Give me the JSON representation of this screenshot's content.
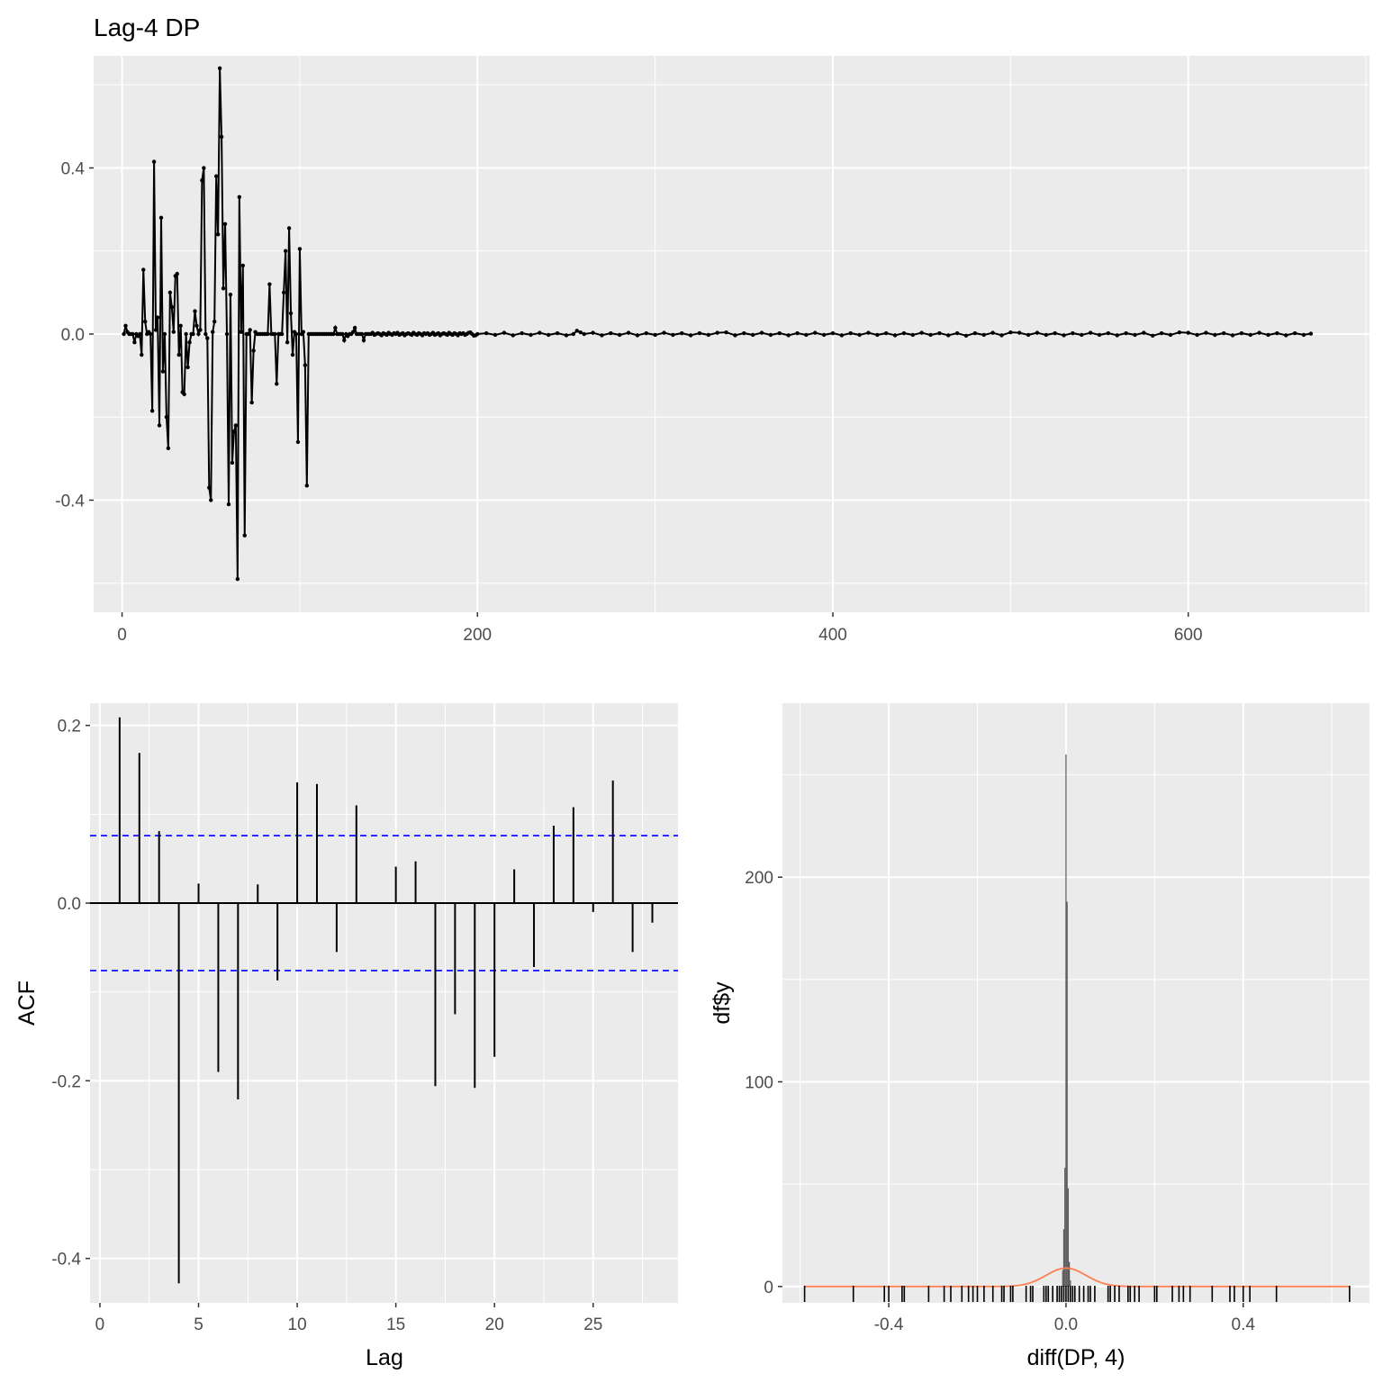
{
  "colors": {
    "panel": "#ebebeb",
    "grid": "#ffffff",
    "line": "#000000",
    "ci": "#0000ff",
    "hist": "#595959",
    "normal_curve": "#ff7f50",
    "tick_text": "#4d4d4d"
  },
  "chart_data": [
    {
      "type": "line",
      "title": "Lag-4 DP",
      "xlabel": "",
      "ylabel": "",
      "xlim": [
        -16,
        702
      ],
      "ylim": [
        -0.67,
        0.67
      ],
      "x_ticks": [
        0,
        200,
        400,
        600
      ],
      "y_ticks": [
        -0.4,
        0.0,
        0.4
      ],
      "y_tick_labels": [
        "-0.4",
        "0.0",
        "0.4"
      ],
      "points": [
        [
          1,
          0
        ],
        [
          2,
          0.02
        ],
        [
          3,
          0.005
        ],
        [
          4,
          0
        ],
        [
          5,
          0
        ],
        [
          6,
          0
        ],
        [
          7,
          -0.02
        ],
        [
          8,
          0
        ],
        [
          9,
          -0.005
        ],
        [
          10,
          0
        ],
        [
          11,
          -0.05
        ],
        [
          12,
          0.155
        ],
        [
          13,
          0.03
        ],
        [
          14,
          0
        ],
        [
          15,
          0.005
        ],
        [
          16,
          0.0
        ],
        [
          17,
          -0.185
        ],
        [
          18,
          0.415
        ],
        [
          19,
          0.01
        ],
        [
          20,
          0.04
        ],
        [
          21,
          -0.22
        ],
        [
          22,
          0.28
        ],
        [
          23,
          -0.09
        ],
        [
          24,
          0.0
        ],
        [
          25,
          -0.2
        ],
        [
          26,
          -0.275
        ],
        [
          27,
          0.1
        ],
        [
          28,
          0.065
        ],
        [
          29,
          0.005
        ],
        [
          30,
          0.14
        ],
        [
          31,
          0.145
        ],
        [
          32,
          -0.05
        ],
        [
          33,
          0.02
        ],
        [
          34,
          -0.14
        ],
        [
          35,
          -0.145
        ],
        [
          36,
          0.0
        ],
        [
          37,
          -0.08
        ],
        [
          38,
          -0.02
        ],
        [
          39,
          0.0
        ],
        [
          40,
          0.0
        ],
        [
          41,
          0.055
        ],
        [
          42,
          0.02
        ],
        [
          43,
          0.0
        ],
        [
          44,
          0.01
        ],
        [
          45,
          0.37
        ],
        [
          46,
          0.4
        ],
        [
          47,
          0.0
        ],
        [
          48,
          -0.01
        ],
        [
          49,
          -0.37
        ],
        [
          50,
          -0.4
        ],
        [
          51,
          0.005
        ],
        [
          52,
          0.03
        ],
        [
          53,
          0.38
        ],
        [
          54,
          0.24
        ],
        [
          55,
          0.64
        ],
        [
          56,
          0.475
        ],
        [
          57,
          0.11
        ],
        [
          58,
          0.265
        ],
        [
          59,
          0.0
        ],
        [
          60,
          -0.41
        ],
        [
          61,
          0.095
        ],
        [
          62,
          -0.31
        ],
        [
          63,
          -0.235
        ],
        [
          64,
          -0.22
        ],
        [
          65,
          -0.59
        ],
        [
          66,
          0.33
        ],
        [
          67,
          0.005
        ],
        [
          68,
          0.165
        ],
        [
          69,
          -0.485
        ],
        [
          70,
          0.0
        ],
        [
          71,
          0.0
        ],
        [
          72,
          0.01
        ],
        [
          73,
          -0.165
        ],
        [
          74,
          -0.04
        ],
        [
          75,
          0.005
        ],
        [
          76,
          0.0
        ],
        [
          77,
          0.0
        ],
        [
          78,
          0.0
        ],
        [
          79,
          0.0
        ],
        [
          80,
          0.0
        ],
        [
          81,
          0.0
        ],
        [
          82,
          0.0
        ],
        [
          83,
          0.12
        ],
        [
          84,
          0.0
        ],
        [
          85,
          0.0
        ],
        [
          86,
          0.0
        ],
        [
          87,
          -0.12
        ],
        [
          88,
          0.0
        ],
        [
          89,
          0.0
        ],
        [
          90,
          0.0
        ],
        [
          91,
          0.1
        ],
        [
          92,
          0.2
        ],
        [
          93,
          -0.02
        ],
        [
          94,
          0.255
        ],
        [
          95,
          0.05
        ],
        [
          96,
          -0.05
        ],
        [
          97,
          0.005
        ],
        [
          98,
          0.0
        ],
        [
          99,
          -0.26
        ],
        [
          100,
          0.205
        ],
        [
          101,
          0.0
        ],
        [
          102,
          0.005
        ],
        [
          103,
          -0.075
        ],
        [
          104,
          -0.365
        ],
        [
          105,
          0.0
        ],
        [
          106,
          0.0
        ],
        [
          107,
          0.0
        ],
        [
          108,
          0.0
        ],
        [
          109,
          0.0
        ],
        [
          110,
          0.0
        ],
        [
          111,
          0.0
        ],
        [
          112,
          0.0
        ],
        [
          113,
          0.0
        ],
        [
          114,
          0.0
        ],
        [
          115,
          0.0
        ],
        [
          116,
          0.0
        ],
        [
          117,
          0.0
        ],
        [
          118,
          0.0
        ],
        [
          119,
          0.0
        ],
        [
          120,
          0.015
        ],
        [
          121,
          0.0
        ],
        [
          122,
          0.0
        ],
        [
          123,
          0.0
        ],
        [
          124,
          0.0
        ],
        [
          125,
          -0.015
        ],
        [
          126,
          0.0
        ],
        [
          127,
          -0.005
        ],
        [
          128,
          0.0
        ],
        [
          129,
          0.0
        ],
        [
          130,
          0.005
        ],
        [
          131,
          0.015
        ],
        [
          132,
          0.0
        ],
        [
          133,
          0.0
        ],
        [
          134,
          0.0
        ],
        [
          135,
          0.0
        ],
        [
          136,
          -0.015
        ],
        [
          137,
          0.0
        ],
        [
          138,
          0.0
        ],
        [
          139,
          0.0
        ],
        [
          140,
          0.0
        ],
        [
          141,
          0.003
        ],
        [
          142,
          -0.002
        ],
        [
          143,
          0.0
        ],
        [
          144,
          0.002
        ],
        [
          145,
          0.0
        ],
        [
          146,
          -0.003
        ],
        [
          147,
          0.002
        ],
        [
          148,
          0.0
        ],
        [
          149,
          -0.002
        ],
        [
          150,
          0.003
        ],
        [
          151,
          0.0
        ],
        [
          152,
          -0.002
        ],
        [
          153,
          0.002
        ],
        [
          154,
          0.0
        ],
        [
          155,
          0.003
        ],
        [
          156,
          -0.002
        ],
        [
          157,
          0.0
        ],
        [
          158,
          0.002
        ],
        [
          159,
          -0.003
        ],
        [
          160,
          0.0
        ],
        [
          161,
          0.002
        ],
        [
          162,
          0.0
        ],
        [
          163,
          -0.002
        ],
        [
          164,
          0.003
        ],
        [
          165,
          0.0
        ],
        [
          166,
          -0.002
        ],
        [
          167,
          0.002
        ],
        [
          168,
          0.0
        ],
        [
          169,
          -0.003
        ],
        [
          170,
          0.002
        ],
        [
          171,
          0.0
        ],
        [
          172,
          0.002
        ],
        [
          173,
          -0.002
        ],
        [
          174,
          0.0
        ],
        [
          175,
          0.003
        ],
        [
          176,
          -0.002
        ],
        [
          177,
          0.0
        ],
        [
          178,
          0.002
        ],
        [
          179,
          -0.003
        ],
        [
          180,
          0.0
        ],
        [
          181,
          0.002
        ],
        [
          182,
          0.0
        ],
        [
          183,
          -0.002
        ],
        [
          184,
          0.003
        ],
        [
          185,
          0.0
        ],
        [
          186,
          -0.002
        ],
        [
          187,
          0.002
        ],
        [
          188,
          0.0
        ],
        [
          189,
          -0.003
        ],
        [
          190,
          0.002
        ],
        [
          191,
          0.0
        ],
        [
          192,
          0.002
        ],
        [
          193,
          -0.002
        ],
        [
          194,
          0.0
        ],
        [
          195,
          0.003
        ],
        [
          196,
          0.004
        ],
        [
          197,
          0.0
        ],
        [
          198,
          -0.004
        ],
        [
          199,
          -0.003
        ],
        [
          200,
          0.0
        ],
        [
          205,
          0.002
        ],
        [
          210,
          -0.002
        ],
        [
          215,
          0.003
        ],
        [
          220,
          -0.003
        ],
        [
          225,
          0.002
        ],
        [
          230,
          -0.002
        ],
        [
          235,
          0.003
        ],
        [
          240,
          -0.002
        ],
        [
          245,
          0.002
        ],
        [
          250,
          -0.003
        ],
        [
          254,
          0.0
        ],
        [
          256,
          0.008
        ],
        [
          258,
          0.004
        ],
        [
          260,
          0.0
        ],
        [
          265,
          0.003
        ],
        [
          270,
          -0.003
        ],
        [
          275,
          0.002
        ],
        [
          280,
          -0.002
        ],
        [
          285,
          0.003
        ],
        [
          290,
          -0.003
        ],
        [
          295,
          0.002
        ],
        [
          300,
          -0.002
        ],
        [
          305,
          0.003
        ],
        [
          310,
          -0.002
        ],
        [
          315,
          0.002
        ],
        [
          320,
          -0.003
        ],
        [
          325,
          0.002
        ],
        [
          330,
          -0.002
        ],
        [
          335,
          0.003
        ],
        [
          340,
          0.004
        ],
        [
          345,
          -0.003
        ],
        [
          350,
          0.002
        ],
        [
          355,
          -0.002
        ],
        [
          360,
          0.003
        ],
        [
          365,
          -0.002
        ],
        [
          370,
          0.002
        ],
        [
          375,
          -0.003
        ],
        [
          380,
          0.002
        ],
        [
          385,
          -0.002
        ],
        [
          390,
          0.003
        ],
        [
          395,
          -0.002
        ],
        [
          400,
          0.002
        ],
        [
          405,
          -0.003
        ],
        [
          410,
          0.002
        ],
        [
          415,
          -0.002
        ],
        [
          420,
          0.003
        ],
        [
          425,
          -0.002
        ],
        [
          430,
          0.002
        ],
        [
          435,
          -0.003
        ],
        [
          440,
          0.002
        ],
        [
          445,
          -0.002
        ],
        [
          450,
          0.003
        ],
        [
          455,
          -0.002
        ],
        [
          460,
          0.002
        ],
        [
          465,
          -0.003
        ],
        [
          470,
          0.002
        ],
        [
          475,
          -0.004
        ],
        [
          480,
          0.002
        ],
        [
          485,
          -0.002
        ],
        [
          490,
          0.003
        ],
        [
          495,
          -0.003
        ],
        [
          500,
          0.004
        ],
        [
          505,
          0.003
        ],
        [
          510,
          -0.002
        ],
        [
          515,
          0.003
        ],
        [
          520,
          -0.002
        ],
        [
          525,
          0.002
        ],
        [
          530,
          -0.003
        ],
        [
          535,
          0.002
        ],
        [
          540,
          -0.002
        ],
        [
          545,
          0.003
        ],
        [
          550,
          -0.002
        ],
        [
          555,
          0.002
        ],
        [
          560,
          -0.003
        ],
        [
          565,
          0.002
        ],
        [
          570,
          -0.002
        ],
        [
          575,
          0.003
        ],
        [
          580,
          -0.004
        ],
        [
          585,
          0.002
        ],
        [
          590,
          -0.002
        ],
        [
          595,
          0.004
        ],
        [
          600,
          0.003
        ],
        [
          605,
          -0.002
        ],
        [
          610,
          0.003
        ],
        [
          615,
          -0.002
        ],
        [
          620,
          0.002
        ],
        [
          625,
          -0.003
        ],
        [
          630,
          0.002
        ],
        [
          635,
          -0.002
        ],
        [
          640,
          0.003
        ],
        [
          645,
          -0.002
        ],
        [
          650,
          0.002
        ],
        [
          655,
          -0.003
        ],
        [
          660,
          0.002
        ],
        [
          665,
          -0.002
        ],
        [
          669,
          0.001
        ]
      ]
    },
    {
      "type": "bar",
      "xlabel": "Lag",
      "ylabel": "ACF",
      "xlim": [
        -0.5,
        29.3
      ],
      "ylim": [
        -0.45,
        0.225
      ],
      "x_ticks": [
        0,
        5,
        10,
        15,
        20,
        25
      ],
      "y_ticks": [
        -0.4,
        -0.2,
        0.0,
        0.2
      ],
      "y_tick_labels": [
        "-0.4",
        "-0.2",
        "0.0",
        "0.2"
      ],
      "ci": [
        0.076,
        -0.076
      ],
      "lags": [
        1,
        2,
        3,
        4,
        5,
        6,
        7,
        8,
        9,
        10,
        11,
        12,
        13,
        14,
        15,
        16,
        17,
        18,
        19,
        20,
        21,
        22,
        23,
        24,
        25,
        26,
        27,
        28
      ],
      "values": [
        0.209,
        0.169,
        0.081,
        -0.428,
        0.022,
        -0.19,
        -0.221,
        0.021,
        -0.087,
        0.136,
        0.134,
        -0.055,
        0.11,
        0.0,
        0.041,
        0.047,
        -0.206,
        -0.125,
        -0.208,
        -0.173,
        0.038,
        -0.072,
        0.087,
        0.108,
        -0.01,
        0.138,
        -0.055,
        -0.022
      ]
    },
    {
      "type": "bar",
      "xlabel": "diff(DP, 4)",
      "ylabel": "df$y",
      "xlim": [
        -0.64,
        0.685
      ],
      "ylim": [
        -8,
        285
      ],
      "x_ticks": [
        -0.4,
        0.0,
        0.4
      ],
      "x_tick_labels": [
        "-0.4",
        "0.0",
        "0.4"
      ],
      "y_ticks": [
        0,
        100,
        200
      ],
      "histogram": {
        "bin_centers": [
          -0.0075,
          -0.005,
          -0.0025,
          0.0,
          0.0025,
          0.005,
          0.0075,
          0.01
        ],
        "heights": [
          8,
          28,
          58,
          260,
          188,
          48,
          12,
          3
        ]
      },
      "normal_curve": {
        "mean": 0.0,
        "sd": 0.045,
        "peak": 9
      },
      "rug": [
        -0.59,
        -0.48,
        -0.41,
        -0.4,
        -0.37,
        -0.365,
        -0.31,
        -0.275,
        -0.26,
        -0.235,
        -0.22,
        -0.21,
        -0.2,
        -0.185,
        -0.165,
        -0.145,
        -0.14,
        -0.125,
        -0.12,
        -0.09,
        -0.08,
        -0.075,
        -0.05,
        -0.045,
        -0.04,
        -0.03,
        -0.02,
        -0.015,
        -0.01,
        -0.005,
        0.0,
        0.005,
        0.01,
        0.015,
        0.02,
        0.03,
        0.04,
        0.05,
        0.055,
        0.065,
        0.095,
        0.1,
        0.11,
        0.12,
        0.14,
        0.145,
        0.155,
        0.165,
        0.2,
        0.205,
        0.24,
        0.255,
        0.265,
        0.28,
        0.33,
        0.37,
        0.38,
        0.4,
        0.415,
        0.475,
        0.64
      ]
    }
  ]
}
